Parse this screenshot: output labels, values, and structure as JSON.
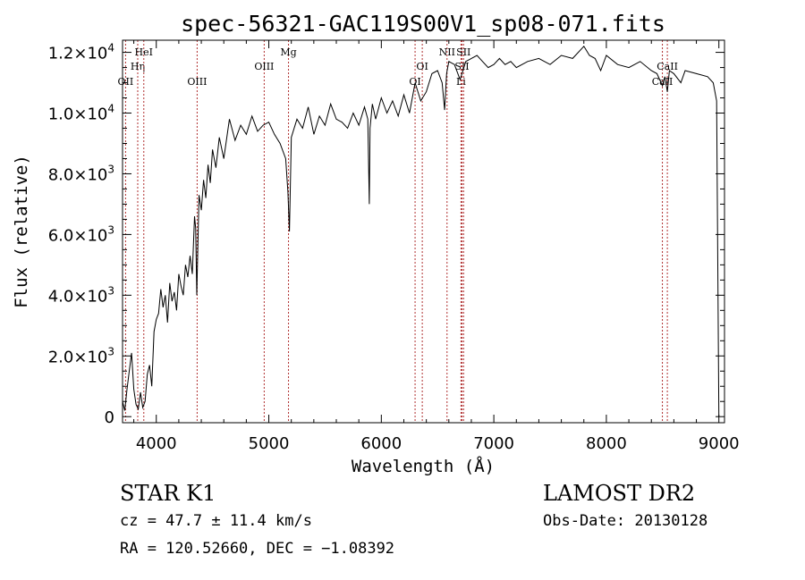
{
  "chart_data": {
    "type": "line",
    "title": "spec-56321-GAC119S00V1_sp08-071.fits",
    "xlabel": "Wavelength (Å)",
    "ylabel": "Flux (relative)",
    "xlim": [
      3700,
      9050
    ],
    "ylim": [
      -200,
      12400
    ],
    "xticks": [
      4000,
      5000,
      6000,
      7000,
      8000,
      9000
    ],
    "xtick_labels": [
      "4000",
      "5000",
      "6000",
      "7000",
      "8000",
      "9000"
    ],
    "yticks": [
      0,
      2000,
      4000,
      6000,
      8000,
      10000,
      12000
    ],
    "ytick_labels": [
      {
        "mant": "0",
        "exp": ""
      },
      {
        "mant": "2.0×10",
        "exp": "3"
      },
      {
        "mant": "4.0×10",
        "exp": "3"
      },
      {
        "mant": "6.0×10",
        "exp": "3"
      },
      {
        "mant": "8.0×10",
        "exp": "3"
      },
      {
        "mant": "1.0×10",
        "exp": "4"
      },
      {
        "mant": "1.2×10",
        "exp": "4"
      }
    ],
    "grid": false,
    "line_color": "#000000",
    "marker_color": "#b03030",
    "line_markers": [
      {
        "x": 3727,
        "label": "OII",
        "row": 3
      },
      {
        "x": 3835,
        "label": "Hη",
        "row": 2
      },
      {
        "x": 3889,
        "label": "HeI",
        "row": 1
      },
      {
        "x": 4363,
        "label": "OIII",
        "row": 3
      },
      {
        "x": 4959,
        "label": "OIII",
        "row": 2
      },
      {
        "x": 5175,
        "label": "Mg",
        "row": 1
      },
      {
        "x": 6300,
        "label": "OI",
        "row": 3
      },
      {
        "x": 6364,
        "label": "OI",
        "row": 2
      },
      {
        "x": 6584,
        "label": "NII",
        "row": 1
      },
      {
        "x": 6708,
        "label": "Li",
        "row": 3
      },
      {
        "x": 6717,
        "label": "SII",
        "row": 2
      },
      {
        "x": 6731,
        "label": "SII",
        "row": 1
      },
      {
        "x": 8498,
        "label": "CaII",
        "row": 3
      },
      {
        "x": 8542,
        "label": "CaII",
        "row": 2
      }
    ],
    "series": [
      {
        "x": [
          3700,
          3720,
          3740,
          3760,
          3780,
          3800,
          3820,
          3840,
          3860,
          3880,
          3900,
          3920,
          3940,
          3960,
          3980,
          4000,
          4020,
          4040,
          4060,
          4080,
          4100,
          4120,
          4140,
          4160,
          4180,
          4200,
          4220,
          4240,
          4260,
          4280,
          4300,
          4320,
          4340,
          4350,
          4360,
          4380,
          4400,
          4420,
          4440,
          4460,
          4480,
          4500,
          4530,
          4560,
          4600,
          4650,
          4700,
          4750,
          4800,
          4850,
          4900,
          4950,
          5000,
          5050,
          5100,
          5150,
          5170,
          5183,
          5200,
          5250,
          5300,
          5350,
          5400,
          5450,
          5500,
          5550,
          5600,
          5650,
          5700,
          5750,
          5800,
          5850,
          5880,
          5893,
          5900,
          5920,
          5950,
          6000,
          6050,
          6100,
          6150,
          6200,
          6250,
          6300,
          6350,
          6400,
          6450,
          6500,
          6540,
          6563,
          6580,
          6600,
          6650,
          6700,
          6750,
          6800,
          6850,
          6900,
          6950,
          7000,
          7050,
          7100,
          7150,
          7200,
          7300,
          7400,
          7500,
          7600,
          7700,
          7800,
          7850,
          7900,
          7950,
          8000,
          8100,
          8200,
          8300,
          8400,
          8450,
          8498,
          8520,
          8542,
          8560,
          8600,
          8662,
          8700,
          8800,
          8900,
          8950,
          8980,
          9000
        ],
        "y": [
          500,
          200,
          900,
          1500,
          2100,
          900,
          400,
          250,
          800,
          300,
          500,
          1400,
          1700,
          1000,
          2800,
          3200,
          3400,
          4200,
          3600,
          4000,
          3100,
          4400,
          3800,
          4100,
          3500,
          4700,
          4300,
          4000,
          5000,
          4600,
          5300,
          4700,
          6600,
          6200,
          4000,
          7300,
          6800,
          7800,
          7200,
          8300,
          7700,
          8800,
          8200,
          9200,
          8500,
          9800,
          9100,
          9600,
          9300,
          9900,
          9400,
          9600,
          9700,
          9300,
          9000,
          8500,
          7400,
          6100,
          9200,
          9800,
          9500,
          10200,
          9300,
          9900,
          9600,
          10300,
          9800,
          9700,
          9500,
          10000,
          9600,
          10200,
          9800,
          7000,
          9500,
          10300,
          9800,
          10500,
          10000,
          10400,
          9900,
          10600,
          10000,
          11000,
          10400,
          10700,
          11300,
          11400,
          11000,
          10100,
          11300,
          11700,
          11600,
          11100,
          11700,
          11800,
          11900,
          11700,
          11500,
          11600,
          11800,
          11600,
          11700,
          11500,
          11700,
          11800,
          11600,
          11900,
          11800,
          12200,
          11900,
          11800,
          11400,
          11900,
          11600,
          11500,
          11700,
          11400,
          11300,
          10900,
          11200,
          10700,
          11400,
          11300,
          11000,
          11400,
          11300,
          11200,
          11000,
          10400,
          0
        ]
      }
    ]
  },
  "info": {
    "left_top": "STAR    K1",
    "right_top": "LAMOST DR2",
    "cz": "cz = 47.7 ± 11.4 km/s",
    "obs_date": "Obs-Date: 20130128",
    "radec": "RA = 120.52660, DEC =  −1.08392"
  }
}
